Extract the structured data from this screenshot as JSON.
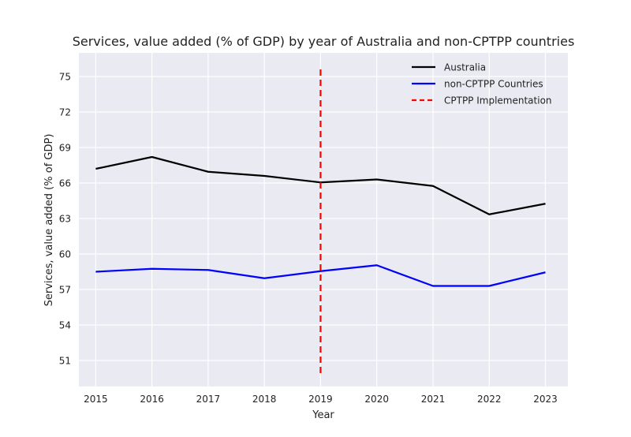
{
  "chart_data": {
    "type": "line",
    "title": "Services, value added (% of GDP) by year of Australia and non-CPTPP countries",
    "xlabel": "Year",
    "ylabel": "Services, value added (% of GDP)",
    "x": [
      2015,
      2016,
      2017,
      2018,
      2019,
      2020,
      2021,
      2022,
      2023
    ],
    "xlim": [
      2014.7,
      2023.4
    ],
    "ylim": [
      48.8,
      77.0
    ],
    "yticks": [
      51,
      54,
      57,
      60,
      63,
      66,
      69,
      72,
      75
    ],
    "grid": true,
    "legend_position": "top-right",
    "series": [
      {
        "name": "Australia",
        "color": "#000000",
        "style": "solid",
        "values": [
          67.2,
          68.2,
          66.95,
          66.6,
          66.05,
          66.3,
          65.75,
          63.35,
          64.25
        ]
      },
      {
        "name": "non-CPTPP Countries",
        "color": "#0000ff",
        "style": "solid",
        "values": [
          58.5,
          58.75,
          58.65,
          57.95,
          58.55,
          59.05,
          57.3,
          57.3,
          58.45
        ]
      }
    ],
    "vline": {
      "name": "CPTPP Implementation",
      "x": 2019,
      "y_range": [
        49.7,
        75.6
      ],
      "color": "#ff0000",
      "style": "dashed"
    },
    "colors": {
      "plot_background": "#eaeaf2",
      "grid": "#ffffff"
    }
  }
}
